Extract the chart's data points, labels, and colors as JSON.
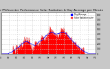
{
  "title": "Solar PV/Inverter Performance Solar Radiation & Day Average per Minute",
  "title_fontsize": 3.2,
  "bg_color": "#c8c8c8",
  "plot_bg_color": "#ffffff",
  "fill_color": "#ff0000",
  "line_color": "#dd0000",
  "avg_line_color": "#0000ff",
  "legend_labels": [
    "Day Average",
    "Solar Radiation w/m²"
  ],
  "legend_colors": [
    "#0000ff",
    "#ff2020"
  ],
  "ylim": [
    0,
    850
  ],
  "num_points": 300,
  "grid_color": "#cccccc",
  "tick_color": "#000000",
  "tick_fontsize": 2.2,
  "ytick_values": [
    0,
    100,
    200,
    300,
    400,
    500,
    600,
    700,
    800
  ]
}
